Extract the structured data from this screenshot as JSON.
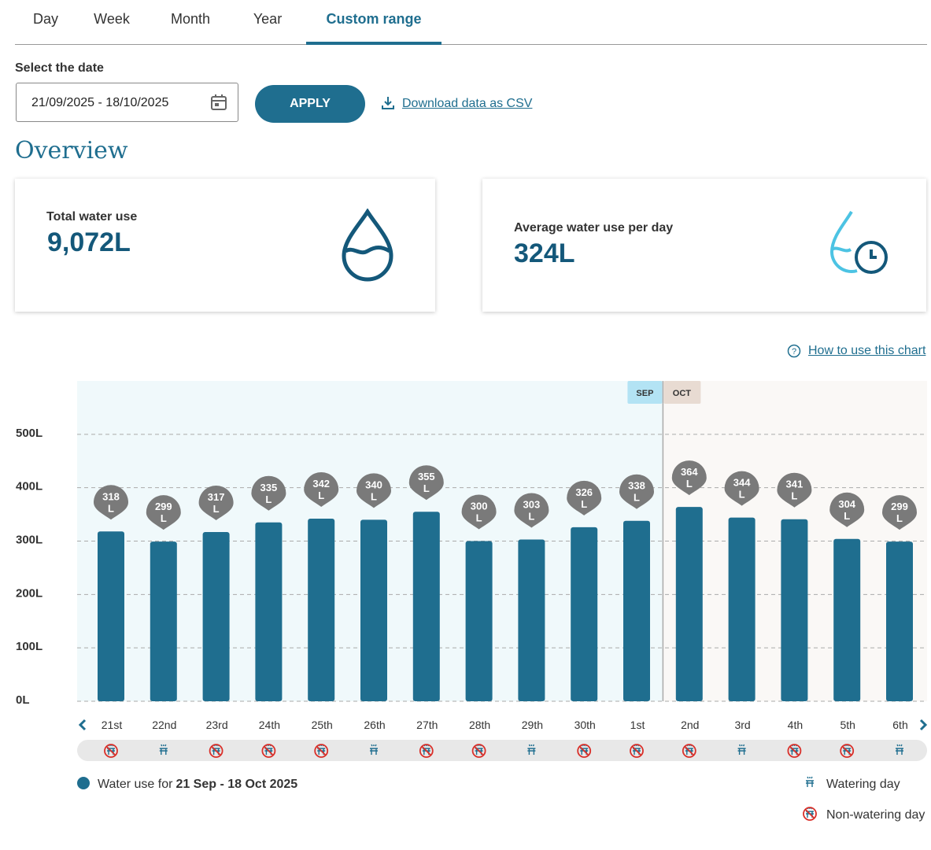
{
  "tabs": [
    "Day",
    "Week",
    "Month",
    "Year",
    "Custom range"
  ],
  "date_label": "Select the date",
  "date_value": "21/09/2025 - 18/10/2025",
  "apply": "APPLY",
  "download": "Download data as CSV",
  "overview_title": "Overview",
  "cards": [
    {
      "label": "Total water use",
      "value": "9,072L"
    },
    {
      "label": "Average water use per day",
      "value": "324L"
    }
  ],
  "help_link": "How to use this chart",
  "chart_data": {
    "type": "bar",
    "color": "#1f6e8f",
    "months": [
      "SEP",
      "OCT"
    ],
    "month_split_index": 11,
    "categories": [
      "21st",
      "22nd",
      "23rd",
      "24th",
      "25th",
      "26th",
      "27th",
      "28th",
      "29th",
      "30th",
      "1st",
      "2nd",
      "3rd",
      "4th",
      "5th",
      "6th"
    ],
    "values": [
      318,
      299,
      317,
      335,
      342,
      340,
      355,
      300,
      303,
      326,
      338,
      364,
      344,
      341,
      304,
      299
    ],
    "value_labels": [
      "318\nL",
      "299\nL",
      "317\nL",
      "335\nL",
      "342\nL",
      "340\nL",
      "355\nL",
      "300\nL",
      "303\nL",
      "326\nL",
      "338\nL",
      "364\nL",
      "344\nL",
      "341\nL",
      "304\nL",
      "299\nL"
    ],
    "watering": [
      false,
      true,
      false,
      false,
      false,
      true,
      false,
      false,
      true,
      false,
      false,
      false,
      true,
      false,
      false,
      true
    ],
    "ylim": [
      0,
      600
    ],
    "yticks": [
      {
        "value": 0,
        "label": "0L"
      },
      {
        "value": 100,
        "label": "100L"
      },
      {
        "value": 200,
        "label": "200L"
      },
      {
        "value": 300,
        "label": "300L"
      },
      {
        "value": 400,
        "label": "400L"
      },
      {
        "value": 500,
        "label": "500L"
      }
    ],
    "grid": true,
    "legend": {
      "prefix": "Water use for",
      "range": "21 Sep - 18 Oct 2025",
      "watering": "Watering day",
      "non_watering": "Non-watering day"
    }
  }
}
